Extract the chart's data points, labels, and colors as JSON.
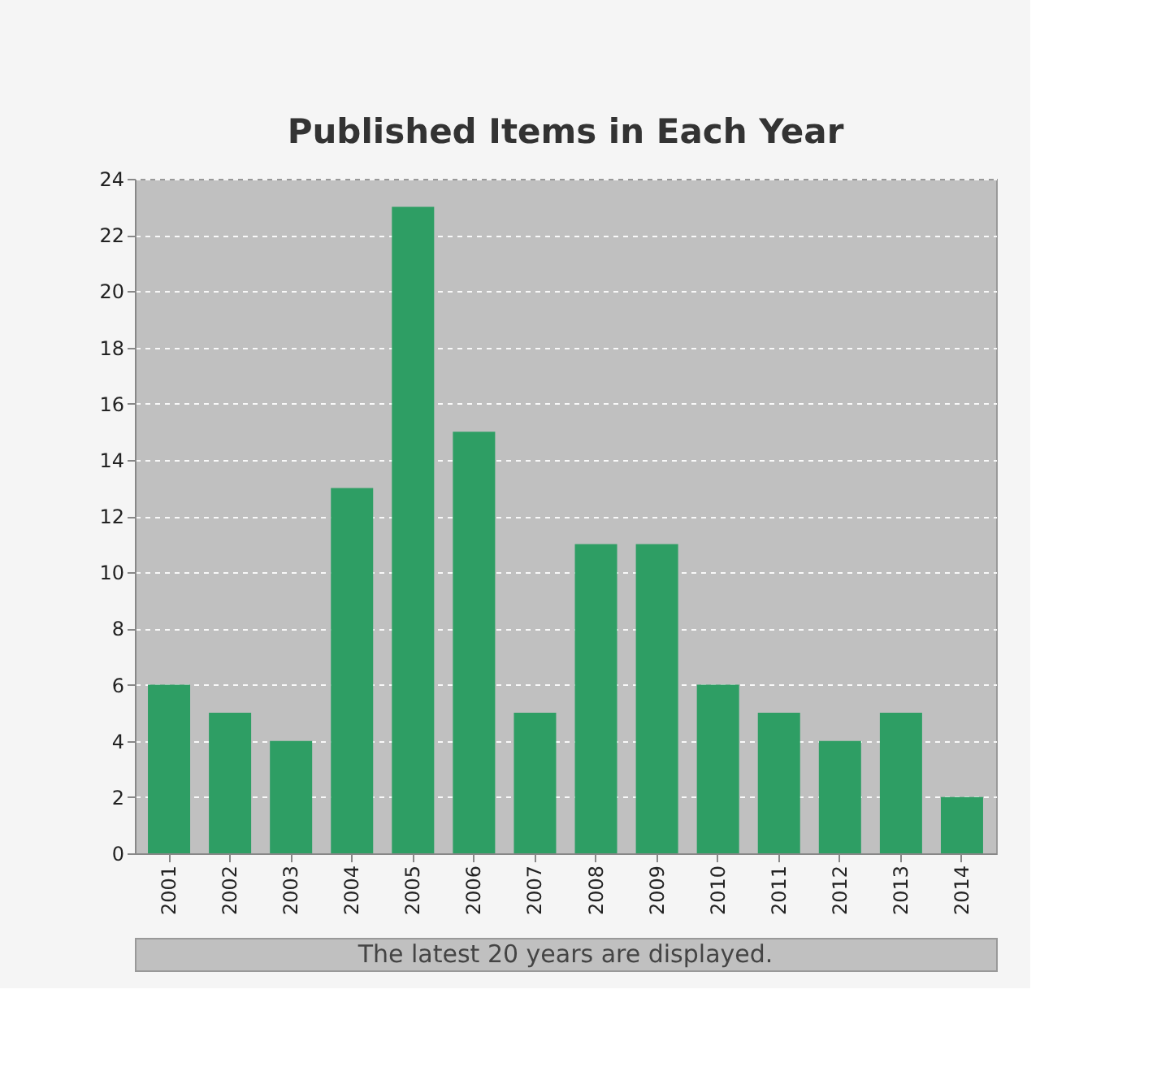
{
  "chart_data": {
    "type": "bar",
    "title": "Published Items in Each Year",
    "categories": [
      "2001",
      "2002",
      "2003",
      "2004",
      "2005",
      "2006",
      "2007",
      "2008",
      "2009",
      "2010",
      "2011",
      "2012",
      "2013",
      "2014"
    ],
    "values": [
      6,
      5,
      4,
      13,
      23,
      15,
      5,
      11,
      11,
      6,
      5,
      4,
      5,
      2
    ],
    "color": "#2e9e64",
    "ylim": [
      0,
      24
    ],
    "yticks": [
      0,
      2,
      4,
      6,
      8,
      10,
      12,
      14,
      16,
      18,
      20,
      22,
      24
    ],
    "grid": "y",
    "annotations": [
      "The latest 20 years are displayed."
    ]
  }
}
